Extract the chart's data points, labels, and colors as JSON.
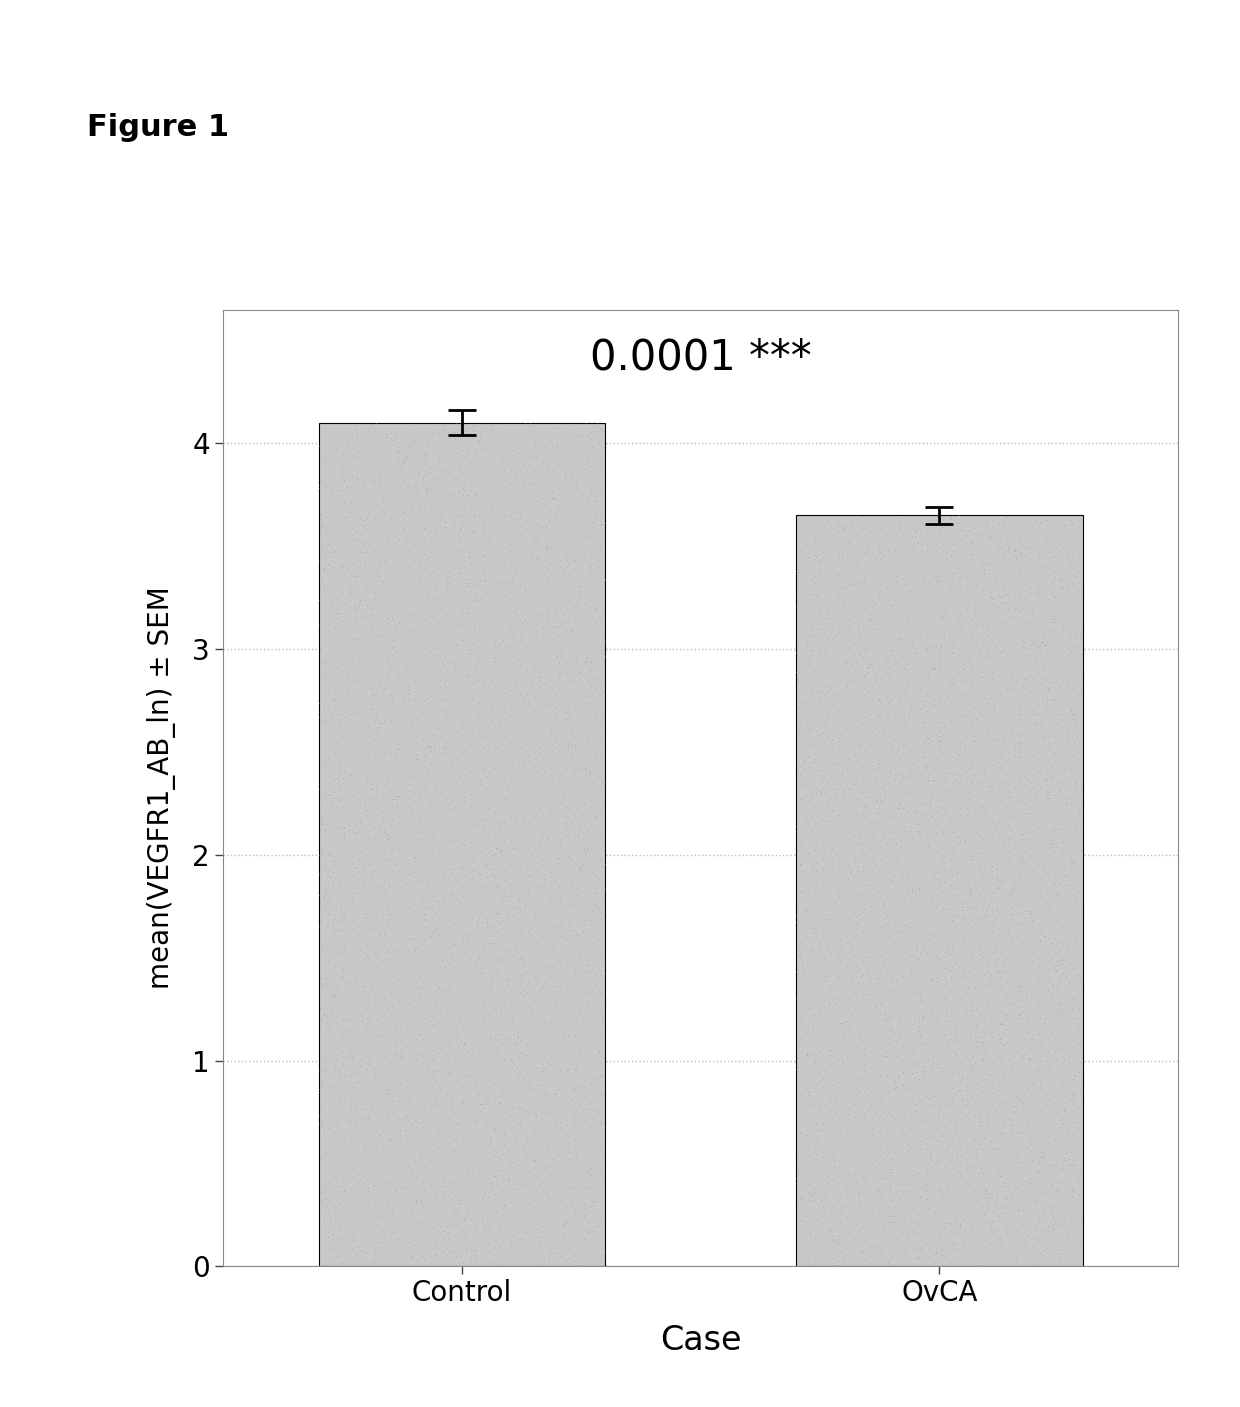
{
  "categories": [
    "Control",
    "OvCA"
  ],
  "values": [
    4.1,
    3.65
  ],
  "errors": [
    0.06,
    0.04
  ],
  "bar_color": "#c8c8c8",
  "bar_edgecolor": "#000000",
  "bar_linewidth": 0.8,
  "error_color": "#000000",
  "error_linewidth": 2.0,
  "error_capsize": 10,
  "error_capthick": 2.0,
  "xlabel": "Case",
  "ylabel": "mean(VEGFR1_AB_ln) ± SEM",
  "xlabel_fontsize": 24,
  "ylabel_fontsize": 20,
  "tick_fontsize": 20,
  "ylim": [
    0,
    4.65
  ],
  "yticks": [
    0,
    1,
    2,
    3,
    4
  ],
  "annotation_text": "0.0001 ***",
  "annotation_fontsize": 30,
  "figure_label": "Figure 1",
  "figure_label_fontsize": 22,
  "background_color": "#ffffff",
  "plot_bg_color": "#ffffff",
  "grid_color": "#bbbbbb",
  "bar_width": 0.6,
  "spine_color": "#888888",
  "spine_linewidth": 0.8
}
